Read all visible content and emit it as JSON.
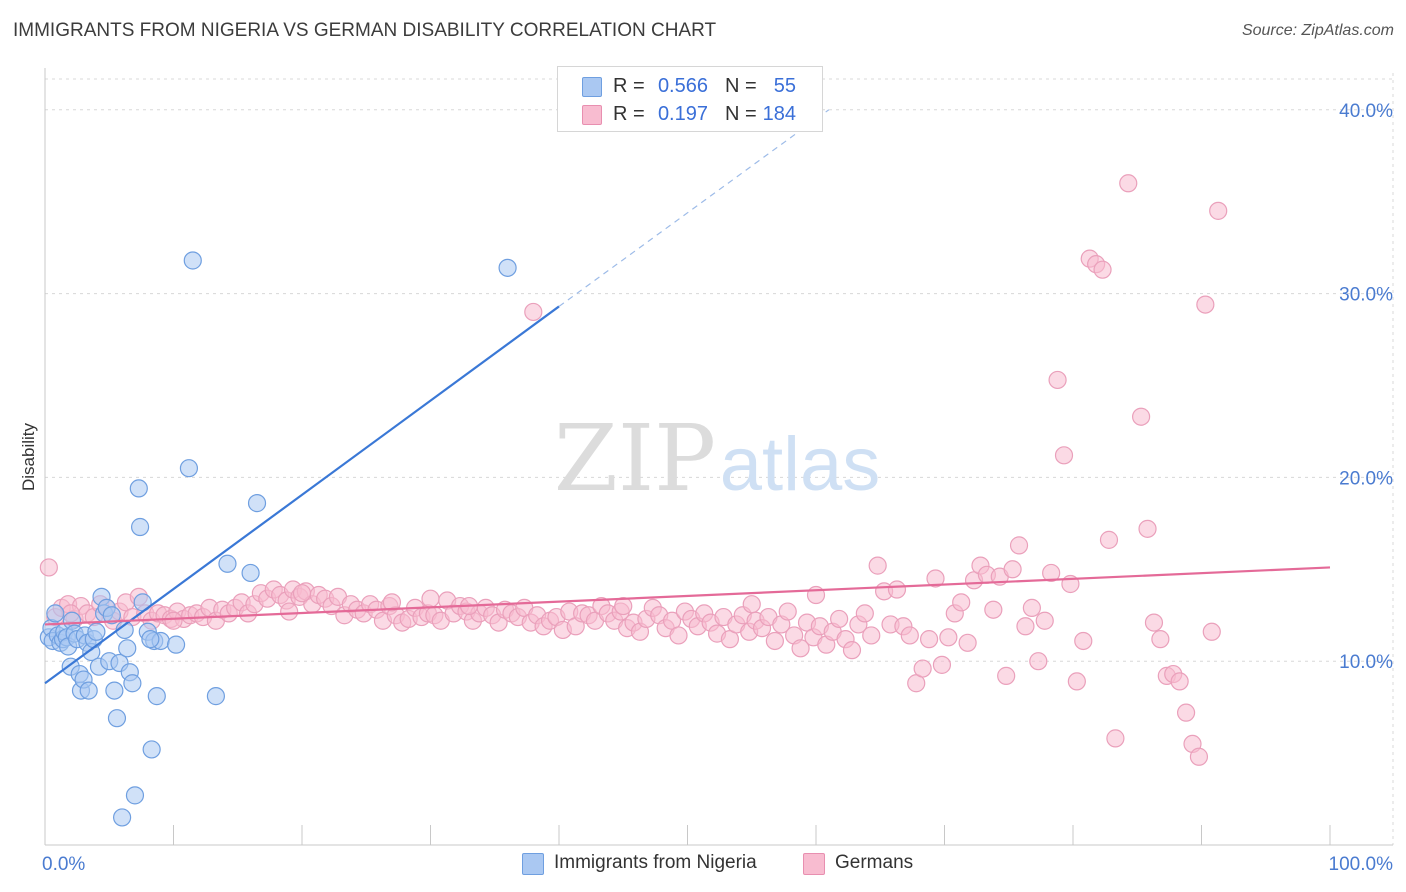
{
  "title": "IMMIGRANTS FROM NIGERIA VS GERMAN DISABILITY CORRELATION CHART",
  "source": "Source: ZipAtlas.com",
  "watermark": {
    "zip": "ZIP",
    "atlas": "atlas"
  },
  "legend": {
    "rows": [
      {
        "r_label": "R =",
        "r_value": "0.566",
        "n_label": "N =",
        "n_value": "55",
        "color": "#aac8f2"
      },
      {
        "r_label": "R =",
        "r_value": "0.197",
        "n_label": "N =",
        "n_value": "184",
        "color": "#f8bcd0"
      }
    ]
  },
  "bottom_legend": [
    {
      "label": "Immigrants from Nigeria",
      "color": "#aac8f2"
    },
    {
      "label": "Germans",
      "color": "#f8bcd0"
    }
  ],
  "colors": {
    "blue": "#3a78d6",
    "blue_fill": "#aac8f2",
    "pink": "#e46a98",
    "pink_fill": "#f8bcd0",
    "grid": "#d8d8d8",
    "tick_text": "#4a7bd0"
  },
  "chart_data": {
    "type": "scatter",
    "title": "IMMIGRANTS FROM NIGERIA VS GERMAN DISABILITY CORRELATION CHART",
    "xlabel": "",
    "ylabel": "Disability",
    "xlim": [
      0,
      100
    ],
    "ylim": [
      0,
      42
    ],
    "x_tick_labels": [
      "0.0%",
      "100.0%"
    ],
    "y_ticks": [
      10,
      20,
      30,
      40
    ],
    "y_tick_labels": [
      "10.0%",
      "20.0%",
      "30.0%",
      "40.0%"
    ],
    "grid": true,
    "legend_position": "top-center",
    "series": [
      {
        "name": "Immigrants from Nigeria",
        "r": 0.566,
        "n": 55,
        "trend": {
          "x0": 0,
          "y0": 8.8,
          "x1": 40,
          "y1": 29.3,
          "dash_to_x": 61,
          "dash_to_y": 40.0
        },
        "points": [
          [
            0.3,
            11.3
          ],
          [
            0.5,
            11.8
          ],
          [
            0.6,
            11.1
          ],
          [
            0.8,
            12.6
          ],
          [
            1.0,
            11.4
          ],
          [
            1.2,
            11.0
          ],
          [
            1.4,
            11.2
          ],
          [
            1.5,
            11.6
          ],
          [
            1.7,
            11.3
          ],
          [
            1.8,
            10.8
          ],
          [
            2.0,
            9.7
          ],
          [
            2.1,
            12.2
          ],
          [
            2.3,
            11.5
          ],
          [
            2.5,
            11.2
          ],
          [
            2.7,
            9.3
          ],
          [
            2.8,
            8.4
          ],
          [
            3.0,
            9.0
          ],
          [
            3.1,
            11.4
          ],
          [
            3.3,
            11.0
          ],
          [
            3.4,
            8.4
          ],
          [
            3.6,
            10.5
          ],
          [
            3.8,
            11.2
          ],
          [
            4.0,
            11.6
          ],
          [
            4.2,
            9.7
          ],
          [
            4.4,
            13.5
          ],
          [
            4.6,
            12.6
          ],
          [
            4.8,
            12.9
          ],
          [
            5.0,
            10.0
          ],
          [
            5.2,
            12.5
          ],
          [
            5.4,
            8.4
          ],
          [
            5.6,
            6.9
          ],
          [
            5.8,
            9.9
          ],
          [
            6.0,
            1.5
          ],
          [
            6.2,
            11.7
          ],
          [
            6.4,
            10.7
          ],
          [
            6.6,
            9.4
          ],
          [
            6.8,
            8.8
          ],
          [
            7.0,
            2.7
          ],
          [
            7.3,
            19.4
          ],
          [
            7.4,
            17.3
          ],
          [
            7.6,
            13.2
          ],
          [
            8.0,
            11.6
          ],
          [
            8.3,
            5.2
          ],
          [
            8.5,
            11.1
          ],
          [
            8.7,
            8.1
          ],
          [
            9.0,
            11.1
          ],
          [
            10.2,
            10.9
          ],
          [
            11.2,
            20.5
          ],
          [
            11.5,
            31.8
          ],
          [
            13.3,
            8.1
          ],
          [
            14.2,
            15.3
          ],
          [
            16.0,
            14.8
          ],
          [
            16.5,
            18.6
          ],
          [
            36.0,
            31.4
          ],
          [
            8.2,
            11.2
          ]
        ]
      },
      {
        "name": "Germans",
        "r": 0.197,
        "n": 184,
        "trend": {
          "x0": 0,
          "y0": 12.0,
          "x1": 100,
          "y1": 15.1
        },
        "points": [
          [
            0.3,
            15.1
          ],
          [
            0.8,
            12.4
          ],
          [
            1.3,
            12.9
          ],
          [
            1.8,
            13.1
          ],
          [
            2.3,
            12.3
          ],
          [
            2.8,
            13.0
          ],
          [
            3.3,
            12.6
          ],
          [
            3.8,
            12.4
          ],
          [
            4.3,
            13.1
          ],
          [
            4.8,
            12.9
          ],
          [
            5.3,
            12.2
          ],
          [
            5.8,
            12.7
          ],
          [
            6.3,
            13.2
          ],
          [
            6.8,
            12.4
          ],
          [
            7.3,
            13.5
          ],
          [
            7.8,
            12.6
          ],
          [
            8.3,
            12.2
          ],
          [
            8.8,
            12.6
          ],
          [
            9.3,
            12.5
          ],
          [
            9.8,
            12.3
          ],
          [
            10.3,
            12.7
          ],
          [
            10.8,
            12.3
          ],
          [
            11.3,
            12.5
          ],
          [
            11.8,
            12.6
          ],
          [
            12.3,
            12.4
          ],
          [
            12.8,
            12.9
          ],
          [
            13.3,
            12.2
          ],
          [
            13.8,
            12.8
          ],
          [
            14.3,
            12.6
          ],
          [
            14.8,
            12.9
          ],
          [
            15.3,
            13.2
          ],
          [
            15.8,
            12.6
          ],
          [
            16.3,
            13.1
          ],
          [
            16.8,
            13.7
          ],
          [
            17.3,
            13.4
          ],
          [
            17.8,
            13.9
          ],
          [
            18.3,
            13.6
          ],
          [
            18.8,
            13.3
          ],
          [
            19.3,
            13.9
          ],
          [
            19.8,
            13.5
          ],
          [
            20.3,
            13.8
          ],
          [
            20.8,
            13.1
          ],
          [
            21.3,
            13.6
          ],
          [
            21.8,
            13.4
          ],
          [
            22.3,
            13.0
          ],
          [
            22.8,
            13.5
          ],
          [
            23.3,
            12.5
          ],
          [
            23.8,
            13.1
          ],
          [
            24.3,
            12.8
          ],
          [
            24.8,
            12.6
          ],
          [
            25.3,
            13.1
          ],
          [
            25.8,
            12.8
          ],
          [
            26.3,
            12.2
          ],
          [
            26.8,
            13.0
          ],
          [
            27.3,
            12.5
          ],
          [
            27.8,
            12.1
          ],
          [
            28.3,
            12.3
          ],
          [
            28.8,
            12.9
          ],
          [
            29.3,
            12.4
          ],
          [
            29.8,
            12.6
          ],
          [
            30.3,
            12.5
          ],
          [
            30.8,
            12.2
          ],
          [
            31.3,
            13.3
          ],
          [
            31.8,
            12.6
          ],
          [
            32.3,
            13.0
          ],
          [
            32.8,
            12.7
          ],
          [
            33.3,
            12.2
          ],
          [
            33.8,
            12.6
          ],
          [
            34.3,
            12.9
          ],
          [
            34.8,
            12.5
          ],
          [
            35.3,
            12.1
          ],
          [
            35.8,
            12.8
          ],
          [
            36.3,
            12.6
          ],
          [
            36.8,
            12.4
          ],
          [
            37.3,
            12.9
          ],
          [
            37.8,
            12.1
          ],
          [
            38.3,
            12.5
          ],
          [
            38.8,
            11.9
          ],
          [
            39.3,
            12.2
          ],
          [
            39.8,
            12.4
          ],
          [
            40.3,
            11.7
          ],
          [
            40.8,
            12.7
          ],
          [
            41.3,
            11.9
          ],
          [
            41.8,
            12.6
          ],
          [
            42.3,
            12.5
          ],
          [
            42.8,
            12.2
          ],
          [
            43.3,
            13.0
          ],
          [
            43.8,
            12.6
          ],
          [
            44.3,
            12.2
          ],
          [
            44.8,
            12.7
          ],
          [
            45.3,
            11.8
          ],
          [
            45.8,
            12.1
          ],
          [
            46.3,
            11.6
          ],
          [
            46.8,
            12.3
          ],
          [
            47.3,
            12.9
          ],
          [
            47.8,
            12.5
          ],
          [
            48.3,
            11.8
          ],
          [
            48.8,
            12.2
          ],
          [
            49.3,
            11.4
          ],
          [
            49.8,
            12.7
          ],
          [
            50.3,
            12.3
          ],
          [
            50.8,
            11.9
          ],
          [
            51.3,
            12.6
          ],
          [
            51.8,
            12.1
          ],
          [
            52.3,
            11.5
          ],
          [
            52.8,
            12.4
          ],
          [
            53.3,
            11.2
          ],
          [
            53.8,
            12.0
          ],
          [
            54.3,
            12.5
          ],
          [
            54.8,
            11.6
          ],
          [
            55.3,
            12.2
          ],
          [
            55.8,
            11.8
          ],
          [
            56.3,
            12.4
          ],
          [
            56.8,
            11.1
          ],
          [
            57.3,
            12.0
          ],
          [
            57.8,
            12.7
          ],
          [
            58.3,
            11.4
          ],
          [
            58.8,
            10.7
          ],
          [
            59.3,
            12.1
          ],
          [
            59.8,
            11.3
          ],
          [
            60.3,
            11.9
          ],
          [
            60.8,
            10.9
          ],
          [
            61.3,
            11.6
          ],
          [
            61.8,
            12.3
          ],
          [
            62.3,
            11.2
          ],
          [
            62.8,
            10.6
          ],
          [
            63.3,
            12.0
          ],
          [
            63.8,
            12.6
          ],
          [
            64.3,
            11.4
          ],
          [
            64.8,
            15.2
          ],
          [
            65.3,
            13.8
          ],
          [
            65.8,
            12.0
          ],
          [
            66.3,
            13.9
          ],
          [
            66.8,
            11.9
          ],
          [
            67.3,
            11.4
          ],
          [
            67.8,
            8.8
          ],
          [
            68.3,
            9.6
          ],
          [
            68.8,
            11.2
          ],
          [
            69.3,
            14.5
          ],
          [
            69.8,
            9.8
          ],
          [
            70.3,
            11.3
          ],
          [
            70.8,
            12.6
          ],
          [
            71.3,
            13.2
          ],
          [
            71.8,
            11.0
          ],
          [
            72.3,
            14.4
          ],
          [
            72.8,
            15.2
          ],
          [
            73.3,
            14.7
          ],
          [
            73.8,
            12.8
          ],
          [
            74.3,
            14.6
          ],
          [
            74.8,
            9.2
          ],
          [
            75.3,
            15.0
          ],
          [
            75.8,
            16.3
          ],
          [
            76.3,
            11.9
          ],
          [
            76.8,
            12.9
          ],
          [
            77.3,
            10.0
          ],
          [
            77.8,
            12.2
          ],
          [
            78.3,
            14.8
          ],
          [
            78.8,
            25.3
          ],
          [
            79.3,
            21.2
          ],
          [
            79.8,
            14.2
          ],
          [
            80.3,
            8.9
          ],
          [
            80.8,
            11.1
          ],
          [
            81.3,
            31.9
          ],
          [
            81.8,
            31.6
          ],
          [
            82.3,
            31.3
          ],
          [
            82.8,
            16.6
          ],
          [
            83.3,
            5.8
          ],
          [
            84.3,
            36.0
          ],
          [
            85.3,
            23.3
          ],
          [
            85.8,
            17.2
          ],
          [
            86.3,
            12.1
          ],
          [
            86.8,
            11.2
          ],
          [
            87.3,
            9.2
          ],
          [
            87.8,
            9.3
          ],
          [
            88.3,
            8.9
          ],
          [
            88.8,
            7.2
          ],
          [
            89.3,
            5.5
          ],
          [
            89.8,
            4.8
          ],
          [
            90.3,
            29.4
          ],
          [
            90.8,
            11.6
          ],
          [
            91.3,
            34.5
          ],
          [
            38.0,
            29.0
          ],
          [
            60.0,
            13.6
          ],
          [
            45.0,
            13.0
          ],
          [
            20.0,
            13.7
          ],
          [
            30.0,
            13.4
          ],
          [
            33.0,
            13.0
          ],
          [
            27.0,
            13.2
          ],
          [
            55.0,
            13.1
          ],
          [
            19.0,
            12.7
          ],
          [
            10.0,
            12.2
          ],
          [
            2.0,
            12.6
          ]
        ]
      }
    ]
  }
}
